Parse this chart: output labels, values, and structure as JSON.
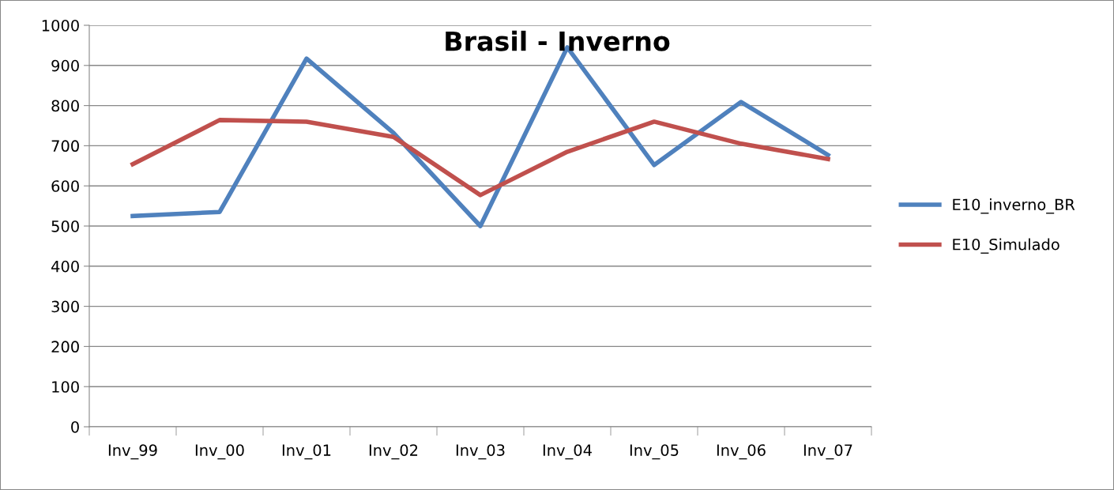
{
  "chart_data": {
    "type": "line",
    "title": "Brasil - Inverno",
    "categories": [
      "Inv_99",
      "Inv_00",
      "Inv_01",
      "Inv_02",
      "Inv_03",
      "Inv_04",
      "Inv_05",
      "Inv_06",
      "Inv_07"
    ],
    "series": [
      {
        "name": "E10_inverno_BR",
        "color": "#4f81bd",
        "values": [
          525,
          535,
          917,
          732,
          500,
          945,
          652,
          809,
          677
        ]
      },
      {
        "name": "E10_Simulado",
        "color": "#c0504d",
        "values": [
          654,
          764,
          760,
          722,
          577,
          685,
          760,
          705,
          667
        ]
      }
    ],
    "ylim": [
      0,
      1000
    ],
    "yticks": [
      0,
      100,
      200,
      300,
      400,
      500,
      600,
      700,
      800,
      900,
      1000
    ],
    "grid": "y",
    "legend": "right",
    "marker": "none",
    "line_style": "solid"
  }
}
